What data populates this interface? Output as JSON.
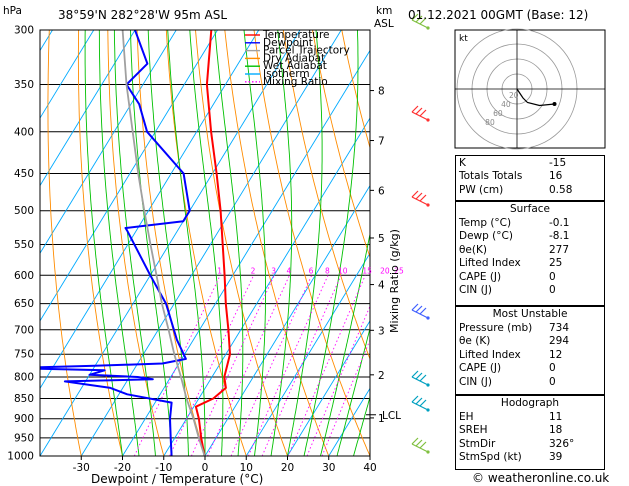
{
  "header": {
    "hpa_label": "hPa",
    "location": "38°59'N  282°28'W  95m  ASL",
    "km_label": "km",
    "asl_label": "ASL",
    "datetime": "01.12.2021  00GMT  (Base: 12)"
  },
  "colors": {
    "temperature": "#ff0000",
    "dewpoint": "#0000ff",
    "parcel": "#a0a0a0",
    "dry_adiabat": "#ff8c00",
    "wet_adiabat": "#00c000",
    "isotherm": "#00aaff",
    "mixing_ratio": "#ff00ff"
  },
  "legend": [
    {
      "label": "Temperature",
      "color": "#ff0000",
      "style": "solid"
    },
    {
      "label": "Dewpoint",
      "color": "#0000ff",
      "style": "solid"
    },
    {
      "label": "Parcel Trajectory",
      "color": "#a0a0a0",
      "style": "solid"
    },
    {
      "label": "Dry Adiabat",
      "color": "#ff8c00",
      "style": "solid"
    },
    {
      "label": "Wet Adiabat",
      "color": "#00c000",
      "style": "solid"
    },
    {
      "label": "Isotherm",
      "color": "#00aaff",
      "style": "solid"
    },
    {
      "label": "Mixing Ratio",
      "color": "#ff00ff",
      "style": "dotted"
    }
  ],
  "chart_data": {
    "type": "line",
    "chart_kind": "skew-T log-P sounding",
    "xlabel": "Dewpoint / Temperature (°C)",
    "ylabel_right": "Mixing Ratio (g/kg)",
    "pressure_ticks": [
      300,
      350,
      400,
      450,
      500,
      550,
      600,
      650,
      700,
      750,
      800,
      850,
      900,
      950,
      1000
    ],
    "temp_ticks": [
      -30,
      -20,
      -10,
      0,
      10,
      20,
      30,
      40
    ],
    "xlim": [
      -40,
      40
    ],
    "ylim": [
      1000,
      300
    ],
    "y_scale": "log",
    "grid": true,
    "km_ticks": [
      {
        "label": "8",
        "p": 356
      },
      {
        "label": "7",
        "p": 410
      },
      {
        "label": "6",
        "p": 472
      },
      {
        "label": "5",
        "p": 540
      },
      {
        "label": "4",
        "p": 616
      },
      {
        "label": "3",
        "p": 701
      },
      {
        "label": "2",
        "p": 795
      },
      {
        "label": "1",
        "p": 898
      }
    ],
    "lcl_label": "LCL",
    "lcl_p": 890,
    "mixing_ratio_labels": [
      {
        "label": "1",
        "t": -7.6
      },
      {
        "label": "2",
        "t": -0.4
      },
      {
        "label": "3",
        "t": 4.0
      },
      {
        "label": "4",
        "t": 7.3
      },
      {
        "label": "6",
        "t": 11.5
      },
      {
        "label": "8",
        "t": 15.3
      },
      {
        "label": "10",
        "t": 17.8
      },
      {
        "label": "15",
        "t": 22.6
      },
      {
        "label": "20",
        "t": 26.5
      },
      {
        "label": "25",
        "t": 28.7
      }
    ],
    "mixing_ratio_label_p": 600,
    "series": [
      {
        "name": "Temperature",
        "color": "#ff0000",
        "points": [
          [
            1000,
            -0.1
          ],
          [
            950,
            -3.6
          ],
          [
            900,
            -7.0
          ],
          [
            870,
            -9.5
          ],
          [
            850,
            -6.5
          ],
          [
            825,
            -5.0
          ],
          [
            800,
            -7.0
          ],
          [
            750,
            -9.0
          ],
          [
            700,
            -13.0
          ],
          [
            650,
            -17.5
          ],
          [
            600,
            -22.0
          ],
          [
            550,
            -27.0
          ],
          [
            500,
            -32.5
          ],
          [
            450,
            -39.0
          ],
          [
            400,
            -46.5
          ],
          [
            350,
            -54.5
          ],
          [
            300,
            -61.5
          ]
        ]
      },
      {
        "name": "Dewpoint",
        "color": "#0000ff",
        "points": [
          [
            1000,
            -8.1
          ],
          [
            950,
            -11.0
          ],
          [
            900,
            -14.0
          ],
          [
            860,
            -16.0
          ],
          [
            840,
            -28.0
          ],
          [
            825,
            -33.0
          ],
          [
            810,
            -45.0
          ],
          [
            805,
            -24.0
          ],
          [
            800,
            -28.0
          ],
          [
            795,
            -40.0
          ],
          [
            785,
            -37.0
          ],
          [
            780,
            -60.0
          ],
          [
            775,
            -40.0
          ],
          [
            770,
            -24.0
          ],
          [
            760,
            -19.0
          ],
          [
            720,
            -24.0
          ],
          [
            650,
            -32.0
          ],
          [
            600,
            -40.0
          ],
          [
            530,
            -52.0
          ],
          [
            525,
            -53.0
          ],
          [
            515,
            -40.0
          ],
          [
            500,
            -40.0
          ],
          [
            450,
            -47.0
          ],
          [
            400,
            -62.0
          ],
          [
            370,
            -68.0
          ],
          [
            350,
            -74.0
          ],
          [
            330,
            -72.0
          ],
          [
            300,
            -80.0
          ]
        ]
      },
      {
        "name": "Parcel Trajectory",
        "color": "#a0a0a0",
        "points": [
          [
            1000,
            -0.1
          ],
          [
            950,
            -4.2
          ],
          [
            900,
            -8.3
          ],
          [
            850,
            -13.0
          ],
          [
            800,
            -17.5
          ],
          [
            750,
            -22.5
          ],
          [
            700,
            -27.5
          ],
          [
            650,
            -33.0
          ],
          [
            600,
            -38.5
          ],
          [
            550,
            -44.5
          ],
          [
            500,
            -51.0
          ],
          [
            450,
            -58.0
          ],
          [
            400,
            -65.5
          ],
          [
            350,
            -74.0
          ],
          [
            300,
            -83.0
          ]
        ]
      }
    ]
  },
  "hodograph": {
    "kt_label": "kt",
    "ring_labels": [
      "20",
      "40",
      "60",
      "80"
    ],
    "points": [
      [
        0,
        0
      ],
      [
        4,
        -6
      ],
      [
        8,
        -12
      ],
      [
        14,
        -18
      ],
      [
        30,
        -22
      ],
      [
        50,
        -20
      ]
    ]
  },
  "indices": {
    "rows": [
      {
        "label": "K",
        "value": "-15"
      },
      {
        "label": "Totals Totals",
        "value": "16"
      },
      {
        "label": "PW (cm)",
        "value": "0.58"
      }
    ]
  },
  "surface": {
    "title": "Surface",
    "rows": [
      {
        "label": "Temp (°C)",
        "value": "-0.1"
      },
      {
        "label": "Dewp (°C)",
        "value": "-8.1"
      },
      {
        "label": "θe(K)",
        "value": "277"
      },
      {
        "label": "Lifted Index",
        "value": "25"
      },
      {
        "label": "CAPE (J)",
        "value": "0"
      },
      {
        "label": "CIN (J)",
        "value": "0"
      }
    ]
  },
  "most_unstable": {
    "title": "Most Unstable",
    "rows": [
      {
        "label": "Pressure (mb)",
        "value": "734"
      },
      {
        "label": "θe (K)",
        "value": "294"
      },
      {
        "label": "Lifted Index",
        "value": "12"
      },
      {
        "label": "CAPE (J)",
        "value": "0"
      },
      {
        "label": "CIN (J)",
        "value": "0"
      }
    ]
  },
  "hodograph_box": {
    "title": "Hodograph",
    "rows": [
      {
        "label": "EH",
        "value": "11"
      },
      {
        "label": "SREH",
        "value": "18"
      },
      {
        "label": "StmDir",
        "value": "326°"
      },
      {
        "label": "StmSpd (kt)",
        "value": "39"
      }
    ]
  },
  "footer": {
    "copyright": "© weatheronline.co.uk"
  }
}
